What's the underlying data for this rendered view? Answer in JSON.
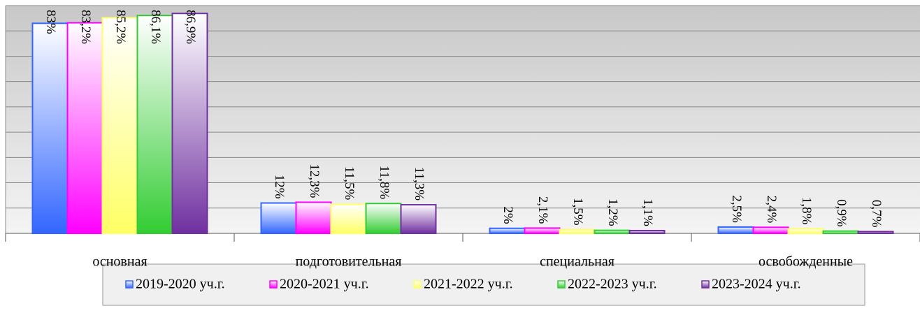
{
  "chart_data": {
    "type": "bar",
    "categories": [
      "основная",
      "подготовительная",
      "специальная",
      "освобожденные"
    ],
    "series": [
      {
        "name": "2019-2020 уч.г.",
        "color": "#3366ff",
        "values": [
          83,
          12,
          2,
          2.5
        ],
        "value_labels": [
          "83%",
          "12%",
          "2%",
          "2,5%"
        ]
      },
      {
        "name": "2020-2021 уч.г.",
        "color": "#ff00ff",
        "values": [
          83.2,
          12.3,
          2.1,
          2.4
        ],
        "value_labels": [
          "83,2%",
          "12,3%",
          "2,1%",
          "2,4%"
        ]
      },
      {
        "name": "2021-2022 уч.г.",
        "color": "#ffff66",
        "values": [
          85.2,
          11.5,
          1.5,
          1.8
        ],
        "value_labels": [
          "85,2%",
          "11,5%",
          "1,5%",
          "1,8%"
        ]
      },
      {
        "name": "2022-2023 уч.г.",
        "color": "#33cc33",
        "values": [
          86.1,
          11.8,
          1.2,
          0.9
        ],
        "value_labels": [
          "86,1%",
          "11,8%",
          "1,2%",
          "0,9%"
        ]
      },
      {
        "name": "2023-2024 уч.г.",
        "color": "#7030a0",
        "values": [
          86.9,
          11.3,
          1.1,
          0.7
        ],
        "value_labels": [
          "86,9%",
          "11,3%",
          "1,1%",
          "0,7%"
        ]
      }
    ],
    "ylim": [
      0,
      90
    ],
    "yticks": [
      0,
      10,
      20,
      30,
      40,
      50,
      60,
      70,
      80,
      90
    ],
    "grid": true,
    "legend": "bottom"
  }
}
